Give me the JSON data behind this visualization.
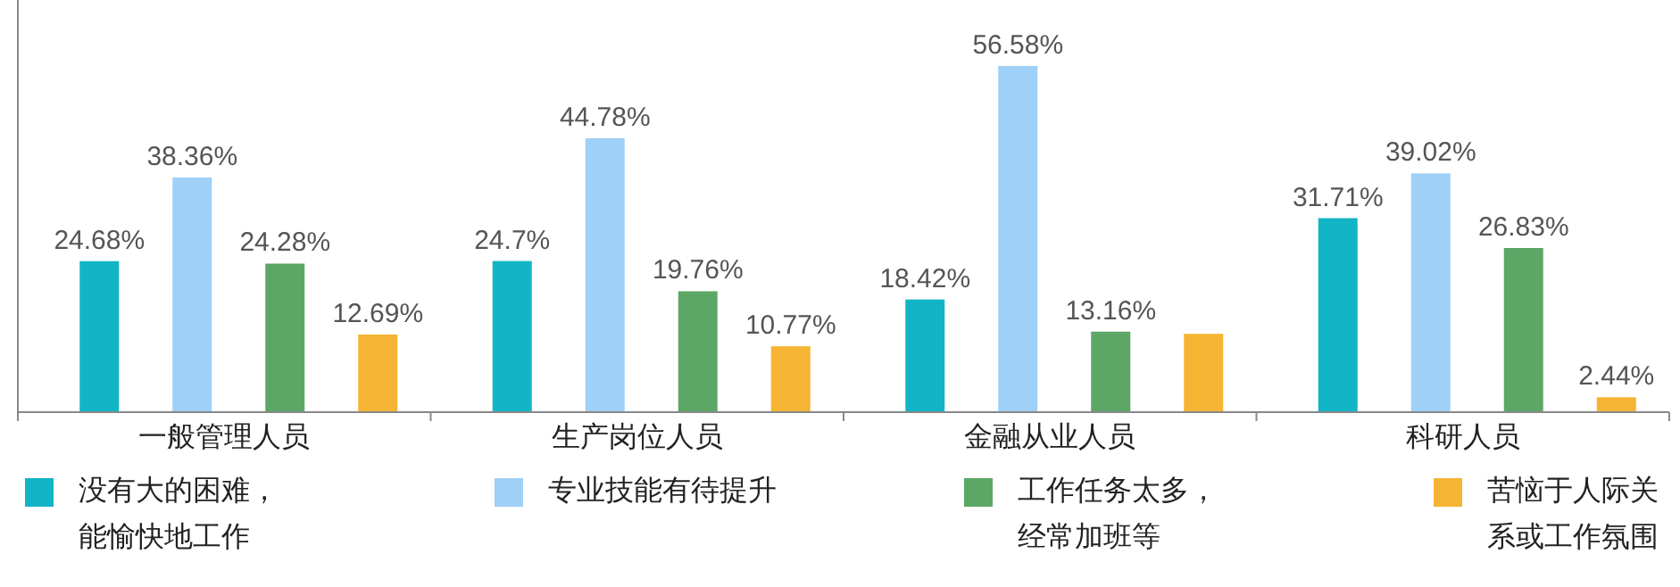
{
  "chart_data": {
    "type": "bar",
    "categories": [
      "一般管理人员",
      "生产岗位人员",
      "金融从业人员",
      "科研人员"
    ],
    "series": [
      {
        "name": "没有大的困难，能愉快地工作",
        "color": "#12b5c6",
        "values": [
          24.68,
          24.7,
          18.42,
          31.71
        ],
        "value_labels": [
          "24.68%",
          "24.7%",
          "18.42%",
          "31.71%"
        ]
      },
      {
        "name": "专业技能有待提升",
        "color": "#9fd0f7",
        "values": [
          38.36,
          44.78,
          56.58,
          39.02
        ],
        "value_labels": [
          "38.36%",
          "44.78%",
          "56.58%",
          "39.02%"
        ]
      },
      {
        "name": "工作任务太多，经常加班等",
        "color": "#5ca766",
        "values": [
          24.28,
          19.76,
          13.16,
          26.83
        ],
        "value_labels": [
          "24.28%",
          "19.76%",
          "13.16%",
          "26.83%"
        ]
      },
      {
        "name": "苦恼于人际关系或工作氛围",
        "color": "#f5b433",
        "values": [
          12.69,
          10.77,
          12.8,
          2.44
        ],
        "value_labels": [
          "12.69%",
          "10.77%",
          null,
          "2.44%"
        ]
      }
    ],
    "legend": "bottom"
  }
}
